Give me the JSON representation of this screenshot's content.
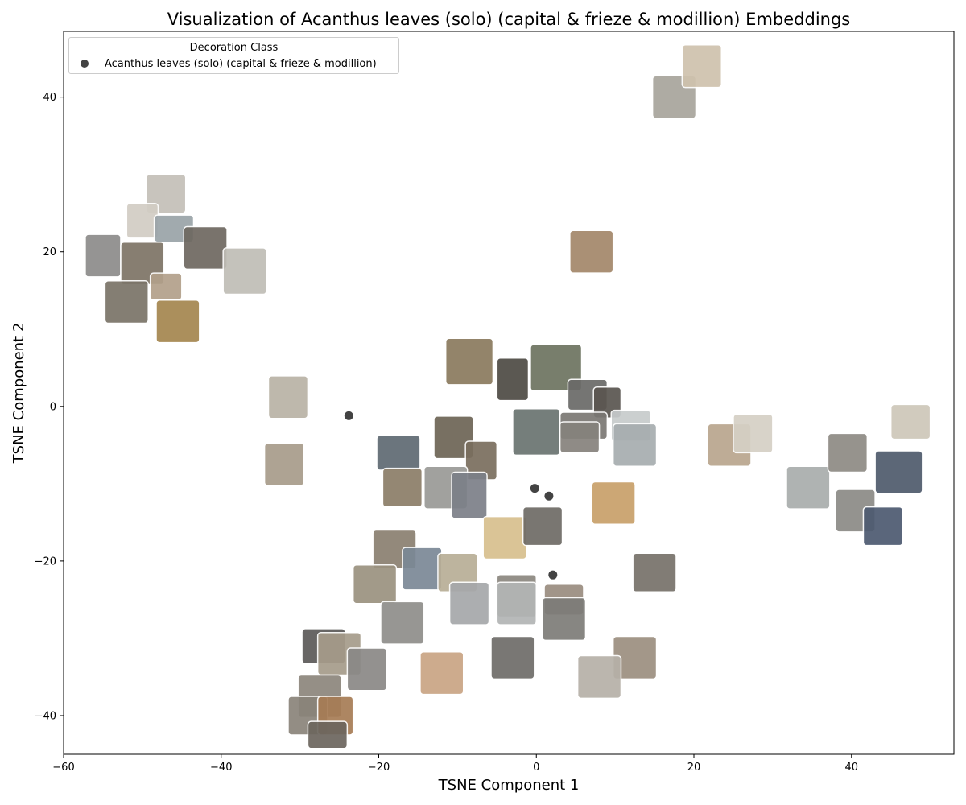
{
  "chart_data": {
    "type": "scatter",
    "title": "Visualization of Acanthus leaves (solo) (capital & frieze & modillion) Embeddings",
    "xlabel": "TSNE Component 1",
    "ylabel": "TSNE Component 2",
    "xlim": [
      -60,
      53
    ],
    "ylim": [
      -45,
      48.5
    ],
    "xticks": [
      -60,
      -40,
      -20,
      0,
      20,
      40
    ],
    "yticks": [
      -40,
      -20,
      0,
      20,
      40
    ],
    "grid": false,
    "legend": {
      "title": "Decoration Class",
      "placement": "top-left",
      "entries": [
        "Acanthus leaves (solo) (capital & frieze & modillion)"
      ]
    },
    "point_color": "#222222",
    "series": [
      {
        "name": "Acanthus leaves (solo) (capital & frieze & modillion)",
        "points": [
          {
            "x": -23.8,
            "y": -1.2
          },
          {
            "x": -0.2,
            "y": -10.6
          },
          {
            "x": 1.6,
            "y": -11.6
          },
          {
            "x": 2.1,
            "y": -21.8
          }
        ]
      }
    ],
    "thumbnails": [
      {
        "x": -31.5,
        "y": 1.2,
        "color": "#b9b2a6",
        "w": 5.0,
        "h": 5.5
      },
      {
        "x": -32.0,
        "y": -7.5,
        "color": "#a89c8a",
        "w": 5.0,
        "h": 5.5
      },
      {
        "x": -47.0,
        "y": 27.5,
        "color": "#c4c0b8",
        "w": 5.0,
        "h": 5.0
      },
      {
        "x": -50.0,
        "y": 24.0,
        "color": "#d2cdc4",
        "w": 4.0,
        "h": 4.5
      },
      {
        "x": -46.0,
        "y": 23.0,
        "color": "#9aa3a8",
        "w": 5.0,
        "h": 3.5
      },
      {
        "x": -55.0,
        "y": 19.5,
        "color": "#8d8c8a",
        "w": 4.5,
        "h": 5.5
      },
      {
        "x": -42.0,
        "y": 20.5,
        "color": "#6e6860",
        "w": 5.5,
        "h": 5.5
      },
      {
        "x": -50.0,
        "y": 18.5,
        "color": "#7d7466",
        "w": 5.5,
        "h": 5.5
      },
      {
        "x": -37.0,
        "y": 17.5,
        "color": "#c0bdb6",
        "w": 5.5,
        "h": 6.0
      },
      {
        "x": -52.0,
        "y": 13.5,
        "color": "#7a7468",
        "w": 5.5,
        "h": 5.5
      },
      {
        "x": -45.5,
        "y": 11.0,
        "color": "#a4864f",
        "w": 5.5,
        "h": 5.5
      },
      {
        "x": -47.0,
        "y": 15.5,
        "color": "#b2a08a",
        "w": 4.0,
        "h": 3.5
      },
      {
        "x": 17.5,
        "y": 40.0,
        "color": "#a8a49c",
        "w": 5.5,
        "h": 5.5
      },
      {
        "x": 21.0,
        "y": 44.0,
        "color": "#cfc2ad",
        "w": 5.0,
        "h": 5.5
      },
      {
        "x": 7.0,
        "y": 20.0,
        "color": "#a3876a",
        "w": 5.5,
        "h": 5.5
      },
      {
        "x": -8.5,
        "y": 5.8,
        "color": "#8a7a5e",
        "w": 6.0,
        "h": 6.0
      },
      {
        "x": 2.5,
        "y": 5.0,
        "color": "#6d7460",
        "w": 6.5,
        "h": 6.0
      },
      {
        "x": -3.0,
        "y": 3.5,
        "color": "#4e4a44",
        "w": 4.0,
        "h": 5.5
      },
      {
        "x": 6.5,
        "y": 1.5,
        "color": "#6a6a68",
        "w": 5.0,
        "h": 4.0
      },
      {
        "x": 9.0,
        "y": 0.5,
        "color": "#5a5550",
        "w": 3.5,
        "h": 4.0
      },
      {
        "x": 6.0,
        "y": -2.5,
        "color": "#7b7874",
        "w": 6.0,
        "h": 3.5
      },
      {
        "x": 0.0,
        "y": -3.3,
        "color": "#6a7470",
        "w": 6.0,
        "h": 6.0
      },
      {
        "x": 5.5,
        "y": -4.0,
        "color": "#86827c",
        "w": 5.0,
        "h": 4.0
      },
      {
        "x": 12.0,
        "y": -2.5,
        "color": "#c7cbcc",
        "w": 5.0,
        "h": 4.0
      },
      {
        "x": 12.5,
        "y": -5.0,
        "color": "#a7adaf",
        "w": 5.5,
        "h": 5.5
      },
      {
        "x": -10.5,
        "y": -4.0,
        "color": "#6d6455",
        "w": 5.0,
        "h": 5.5
      },
      {
        "x": -17.5,
        "y": -6.0,
        "color": "#5f6a72",
        "w": 5.5,
        "h": 4.5
      },
      {
        "x": -7.0,
        "y": -7.0,
        "color": "#7a6e5e",
        "w": 4.0,
        "h": 5.0
      },
      {
        "x": -17.0,
        "y": -10.5,
        "color": "#8b7d68",
        "w": 5.0,
        "h": 5.0
      },
      {
        "x": -11.5,
        "y": -10.5,
        "color": "#9a9a96",
        "w": 5.5,
        "h": 5.5
      },
      {
        "x": -8.5,
        "y": -11.5,
        "color": "#7c8088",
        "w": 4.5,
        "h": 6.0
      },
      {
        "x": -4.0,
        "y": -17.0,
        "color": "#d7c08e",
        "w": 5.5,
        "h": 5.5
      },
      {
        "x": 0.8,
        "y": -15.5,
        "color": "#6e6b66",
        "w": 5.0,
        "h": 5.0
      },
      {
        "x": 9.8,
        "y": -12.5,
        "color": "#c8a06a",
        "w": 5.5,
        "h": 5.5
      },
      {
        "x": 24.5,
        "y": -5.0,
        "color": "#b9a68e",
        "w": 5.5,
        "h": 5.5
      },
      {
        "x": 27.5,
        "y": -3.5,
        "color": "#d5d0c5",
        "w": 5.0,
        "h": 5.0
      },
      {
        "x": 34.5,
        "y": -10.5,
        "color": "#a9adac",
        "w": 5.5,
        "h": 5.5
      },
      {
        "x": 39.5,
        "y": -6.0,
        "color": "#8e8a84",
        "w": 5.0,
        "h": 5.0
      },
      {
        "x": 47.5,
        "y": -2.0,
        "color": "#cec7b9",
        "w": 5.0,
        "h": 4.5
      },
      {
        "x": 46.0,
        "y": -8.5,
        "color": "#4f5b6c",
        "w": 6.0,
        "h": 5.5
      },
      {
        "x": 40.5,
        "y": -13.5,
        "color": "#8c8a86",
        "w": 5.0,
        "h": 5.5
      },
      {
        "x": 44.0,
        "y": -15.5,
        "color": "#4d5a70",
        "w": 5.0,
        "h": 5.0
      },
      {
        "x": 15.0,
        "y": -21.5,
        "color": "#77716a",
        "w": 5.5,
        "h": 5.0
      },
      {
        "x": -18.0,
        "y": -18.5,
        "color": "#8a7f70",
        "w": 5.5,
        "h": 5.0
      },
      {
        "x": -14.5,
        "y": -21.0,
        "color": "#7b8896",
        "w": 5.0,
        "h": 5.5
      },
      {
        "x": -10.0,
        "y": -21.5,
        "color": "#b8ae96",
        "w": 5.0,
        "h": 5.0
      },
      {
        "x": -20.5,
        "y": -23.0,
        "color": "#9b9280",
        "w": 5.5,
        "h": 5.0
      },
      {
        "x": -2.5,
        "y": -24.5,
        "color": "#8c8780",
        "w": 5.0,
        "h": 5.5
      },
      {
        "x": 3.5,
        "y": -25.0,
        "color": "#9a8d80",
        "w": 5.0,
        "h": 4.0
      },
      {
        "x": -8.5,
        "y": -25.5,
        "color": "#a6a8aa",
        "w": 5.0,
        "h": 5.5
      },
      {
        "x": -2.5,
        "y": -25.5,
        "color": "#b3b5b5",
        "w": 5.0,
        "h": 5.5
      },
      {
        "x": 3.5,
        "y": -27.5,
        "color": "#7d7c78",
        "w": 5.5,
        "h": 5.5
      },
      {
        "x": -17.0,
        "y": -28.0,
        "color": "#8f8e8a",
        "w": 5.5,
        "h": 5.5
      },
      {
        "x": -3.0,
        "y": -32.5,
        "color": "#6e6c69",
        "w": 5.5,
        "h": 5.5
      },
      {
        "x": 12.5,
        "y": -32.5,
        "color": "#9c8f80",
        "w": 5.5,
        "h": 5.5
      },
      {
        "x": -12.0,
        "y": -34.5,
        "color": "#c9a484",
        "w": 5.5,
        "h": 5.5
      },
      {
        "x": 8.0,
        "y": -35.0,
        "color": "#b6b0a8",
        "w": 5.5,
        "h": 5.5
      },
      {
        "x": -27.0,
        "y": -31.0,
        "color": "#5c5a58",
        "w": 5.5,
        "h": 4.5
      },
      {
        "x": -25.0,
        "y": -32.0,
        "color": "#a69c8a",
        "w": 5.5,
        "h": 5.5
      },
      {
        "x": -21.5,
        "y": -34.0,
        "color": "#8a8886",
        "w": 5.0,
        "h": 5.5
      },
      {
        "x": -27.5,
        "y": -37.5,
        "color": "#8d867c",
        "w": 5.5,
        "h": 5.5
      },
      {
        "x": -29.0,
        "y": -40.0,
        "color": "#8a847a",
        "w": 5.0,
        "h": 5.0
      },
      {
        "x": -25.5,
        "y": -40.0,
        "color": "#a77c55",
        "w": 4.5,
        "h": 5.0
      },
      {
        "x": -26.5,
        "y": -42.5,
        "color": "#6c665e",
        "w": 5.0,
        "h": 3.5
      }
    ]
  }
}
